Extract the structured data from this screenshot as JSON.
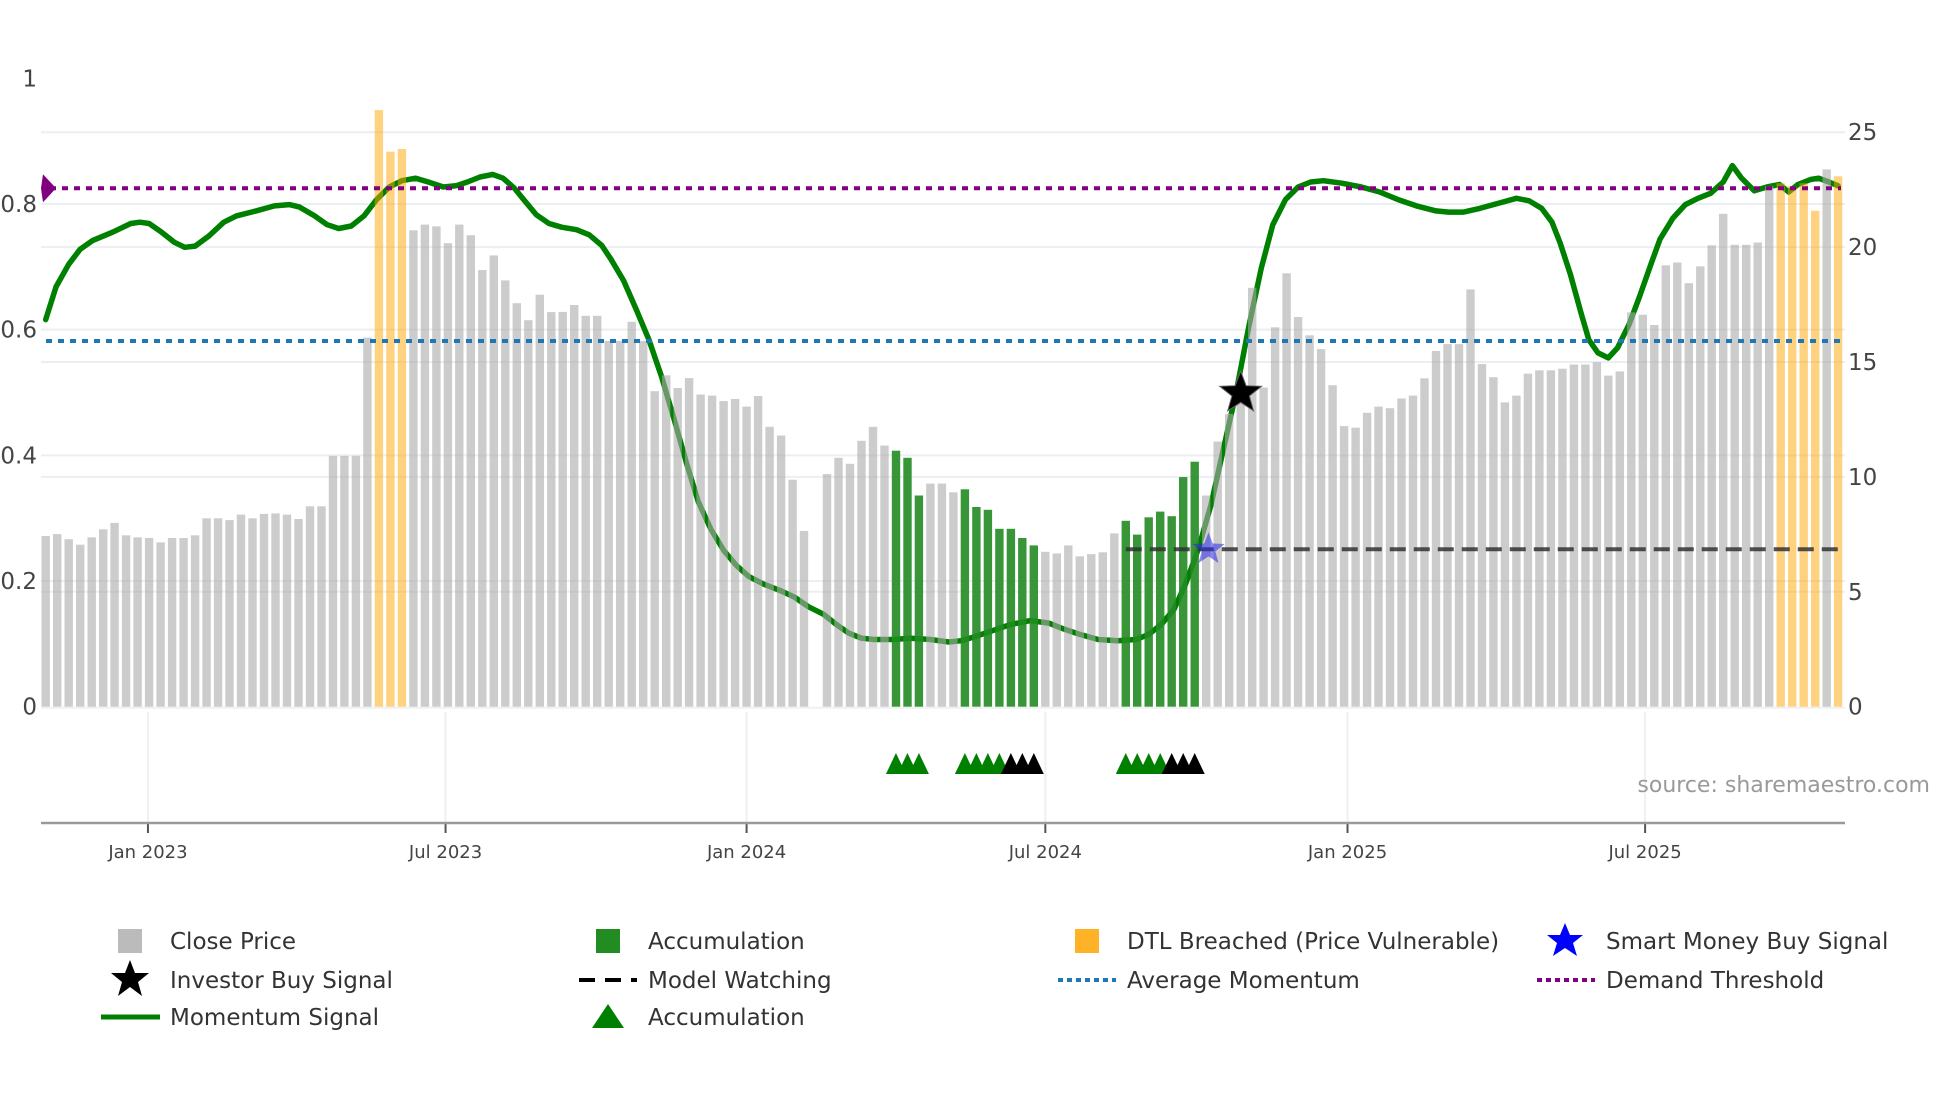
{
  "chart_data": {
    "type": "bar",
    "interval": "weekly",
    "left_axis": {
      "ticks": [
        0,
        0.2,
        0.4,
        0.6,
        0.8,
        1
      ],
      "labels": [
        "0",
        "0.2",
        "0.4",
        "0.6",
        "0.8",
        "1"
      ],
      "range": [
        0,
        1
      ]
    },
    "right_axis": {
      "ticks": [
        0,
        5,
        10,
        15,
        20,
        25
      ],
      "labels": [
        "0",
        "5",
        "10",
        "15",
        "20",
        "25"
      ],
      "range": [
        0,
        25
      ]
    },
    "x_ticks": [
      {
        "week": 8.9,
        "label": "Jan 2023"
      },
      {
        "week": 34.8,
        "label": "Jul 2023"
      },
      {
        "week": 61.0,
        "label": "Jan 2024"
      },
      {
        "week": 87.0,
        "label": "Jul 2024"
      },
      {
        "week": 113.3,
        "label": "Jan 2025"
      },
      {
        "week": 139.2,
        "label": "Jul 2025"
      }
    ],
    "bar_type_key": {
      "c": "Close Price",
      "a": "Accumulation",
      "d": "DTL Breached (Price Vulnerable)"
    },
    "close_price": [
      7.43,
      7.51,
      7.29,
      7.05,
      7.37,
      7.72,
      8.0,
      7.46,
      7.37,
      7.34,
      7.15,
      7.34,
      7.34,
      7.46,
      8.2,
      8.2,
      8.12,
      8.36,
      8.2,
      8.39,
      8.41,
      8.36,
      8.17,
      8.72,
      8.72,
      10.92,
      10.92,
      10.92,
      16.06,
      25.96,
      24.15,
      24.27,
      20.73,
      20.98,
      20.9,
      20.17,
      20.98,
      20.52,
      19.0,
      19.64,
      18.55,
      17.56,
      16.82,
      17.93,
      17.17,
      17.18,
      17.48,
      17.01,
      17.01,
      15.92,
      15.92,
      16.75,
      15.92,
      13.73,
      14.42,
      13.87,
      14.3,
      13.58,
      13.54,
      13.3,
      13.39,
      13.06,
      13.52,
      12.18,
      11.8,
      9.88,
      7.65,
      null,
      10.12,
      10.83,
      10.57,
      11.57,
      12.18,
      11.36,
      11.14,
      10.83,
      9.19,
      9.71,
      9.71,
      9.33,
      9.46,
      8.69,
      8.57,
      7.74,
      7.74,
      7.34,
      7.02,
      6.74,
      6.67,
      7.02,
      6.54,
      6.64,
      6.72,
      7.54,
      8.09,
      7.49,
      8.24,
      8.49,
      8.29,
      9.99,
      10.66,
      9.19,
      11.54,
      12.74,
      13.89,
      18.23,
      13.89,
      16.51,
      18.86,
      16.96,
      16.16,
      15.56,
      13.99,
      12.21,
      12.14,
      12.79,
      13.06,
      12.99,
      13.41,
      13.54,
      14.29,
      15.48,
      15.78,
      15.78,
      18.16,
      14.91,
      14.34,
      13.24,
      13.54,
      14.49,
      14.64,
      14.64,
      14.71,
      14.89,
      14.89,
      14.99,
      14.41,
      14.59,
      17.16,
      17.06,
      16.61,
      19.21,
      19.33,
      18.43,
      19.16,
      20.08,
      21.45,
      20.1,
      20.1,
      20.2,
      22.65,
      22.78,
      22.65,
      22.78,
      21.58,
      23.38,
      23.08
    ],
    "bar_types": "cccccccccccccccccccccccccccccdddccccccccccccccccccccccccccccccccccccccccccaaacccaaaaaaacccccccaaaaaaaccccccccccccccccccccccccccccccccccccccccccccccccccddddcdd",
    "momentum_signal": [
      [
        0,
        0.616
      ],
      [
        0.9,
        0.668
      ],
      [
        2,
        0.704
      ],
      [
        3,
        0.728
      ],
      [
        4.1,
        0.742
      ],
      [
        5.8,
        0.755
      ],
      [
        7.4,
        0.769
      ],
      [
        8.2,
        0.771
      ],
      [
        9,
        0.769
      ],
      [
        10.1,
        0.755
      ],
      [
        11.2,
        0.739
      ],
      [
        12.1,
        0.731
      ],
      [
        13,
        0.733
      ],
      [
        14.2,
        0.749
      ],
      [
        15.5,
        0.771
      ],
      [
        16.6,
        0.781
      ],
      [
        18.3,
        0.789
      ],
      [
        19.9,
        0.797
      ],
      [
        21.2,
        0.799
      ],
      [
        22.1,
        0.795
      ],
      [
        23.4,
        0.781
      ],
      [
        24.5,
        0.767
      ],
      [
        25.5,
        0.761
      ],
      [
        26.6,
        0.765
      ],
      [
        27.7,
        0.781
      ],
      [
        28.8,
        0.807
      ],
      [
        29.9,
        0.827
      ],
      [
        31,
        0.837
      ],
      [
        32.2,
        0.841
      ],
      [
        33.3,
        0.835
      ],
      [
        34.6,
        0.827
      ],
      [
        35.7,
        0.829
      ],
      [
        36.7,
        0.835
      ],
      [
        37.8,
        0.843
      ],
      [
        38.9,
        0.847
      ],
      [
        39.8,
        0.841
      ],
      [
        40.8,
        0.825
      ],
      [
        41.6,
        0.807
      ],
      [
        42.7,
        0.783
      ],
      [
        43.8,
        0.769
      ],
      [
        44.9,
        0.763
      ],
      [
        46.2,
        0.759
      ],
      [
        47.3,
        0.751
      ],
      [
        48.4,
        0.734
      ],
      [
        49.2,
        0.712
      ],
      [
        50.3,
        0.678
      ],
      [
        51.4,
        0.632
      ],
      [
        52.5,
        0.584
      ],
      [
        53.6,
        0.525
      ],
      [
        54.7,
        0.457
      ],
      [
        55.8,
        0.386
      ],
      [
        56.8,
        0.326
      ],
      [
        57.9,
        0.282
      ],
      [
        59,
        0.249
      ],
      [
        60.1,
        0.225
      ],
      [
        61.2,
        0.207
      ],
      [
        62.5,
        0.195
      ],
      [
        63.9,
        0.185
      ],
      [
        65.1,
        0.175
      ],
      [
        66.4,
        0.159
      ],
      [
        67.7,
        0.147
      ],
      [
        68.8,
        0.131
      ],
      [
        69.9,
        0.117
      ],
      [
        71,
        0.109
      ],
      [
        72.1,
        0.107
      ],
      [
        73.7,
        0.107
      ],
      [
        75.3,
        0.109
      ],
      [
        77,
        0.107
      ],
      [
        78.6,
        0.103
      ],
      [
        79.7,
        0.105
      ],
      [
        80.8,
        0.111
      ],
      [
        82.4,
        0.121
      ],
      [
        84,
        0.131
      ],
      [
        85.7,
        0.137
      ],
      [
        87.3,
        0.133
      ],
      [
        88.4,
        0.125
      ],
      [
        90,
        0.115
      ],
      [
        91.6,
        0.107
      ],
      [
        93.3,
        0.105
      ],
      [
        94.9,
        0.107
      ],
      [
        96,
        0.115
      ],
      [
        97.1,
        0.131
      ],
      [
        98.2,
        0.155
      ],
      [
        99.2,
        0.195
      ],
      [
        100.3,
        0.25
      ],
      [
        101.4,
        0.32
      ],
      [
        102.5,
        0.41
      ],
      [
        103.6,
        0.5
      ],
      [
        104.7,
        0.604
      ],
      [
        105.8,
        0.698
      ],
      [
        106.8,
        0.767
      ],
      [
        107.9,
        0.807
      ],
      [
        109,
        0.827
      ],
      [
        110.1,
        0.835
      ],
      [
        111.2,
        0.837
      ],
      [
        112.8,
        0.833
      ],
      [
        114.5,
        0.827
      ],
      [
        116.1,
        0.819
      ],
      [
        117.7,
        0.807
      ],
      [
        119.3,
        0.797
      ],
      [
        121,
        0.789
      ],
      [
        122.1,
        0.787
      ],
      [
        123.4,
        0.787
      ],
      [
        124.8,
        0.793
      ],
      [
        126.4,
        0.801
      ],
      [
        128,
        0.809
      ],
      [
        129.1,
        0.805
      ],
      [
        130.2,
        0.793
      ],
      [
        131.1,
        0.771
      ],
      [
        131.8,
        0.738
      ],
      [
        132.7,
        0.688
      ],
      [
        133.6,
        0.628
      ],
      [
        134.3,
        0.584
      ],
      [
        135.1,
        0.563
      ],
      [
        136,
        0.555
      ],
      [
        136.8,
        0.571
      ],
      [
        137.8,
        0.608
      ],
      [
        138.7,
        0.652
      ],
      [
        139.7,
        0.704
      ],
      [
        140.5,
        0.744
      ],
      [
        141.6,
        0.777
      ],
      [
        142.7,
        0.799
      ],
      [
        143.8,
        0.809
      ],
      [
        144.9,
        0.817
      ],
      [
        146,
        0.835
      ],
      [
        146.8,
        0.861
      ],
      [
        147.6,
        0.841
      ],
      [
        148.7,
        0.821
      ],
      [
        149.8,
        0.827
      ],
      [
        150.9,
        0.831
      ],
      [
        151.7,
        0.819
      ],
      [
        152.5,
        0.831
      ],
      [
        153.6,
        0.839
      ],
      [
        154.3,
        0.841
      ],
      [
        155.2,
        0.835
      ],
      [
        156,
        0.829
      ]
    ],
    "demand_threshold": 0.825,
    "average_momentum": 0.582,
    "model_watching": {
      "price": 6.85,
      "from_week": 94,
      "to_week": 156.5
    },
    "investor_buy_signal": {
      "week": 104,
      "momentum": 0.499
    },
    "smart_money_buy_signal": {
      "week": 101.2,
      "price": 6.85
    },
    "accumulation_markers": [
      {
        "week": 74,
        "color": "green"
      },
      {
        "week": 75,
        "color": "green"
      },
      {
        "week": 76,
        "color": "green"
      },
      {
        "week": 80,
        "color": "green"
      },
      {
        "week": 81,
        "color": "green"
      },
      {
        "week": 82,
        "color": "green"
      },
      {
        "week": 83,
        "color": "green"
      },
      {
        "week": 84,
        "color": "black"
      },
      {
        "week": 85,
        "color": "black"
      },
      {
        "week": 86,
        "color": "black"
      },
      {
        "week": 94,
        "color": "green"
      },
      {
        "week": 95,
        "color": "green"
      },
      {
        "week": 96,
        "color": "green"
      },
      {
        "week": 97,
        "color": "green"
      },
      {
        "week": 98,
        "color": "black"
      },
      {
        "week": 99,
        "color": "black"
      },
      {
        "week": 100,
        "color": "black"
      }
    ],
    "legend_placement": "bottom",
    "colors": {
      "close": "rgba(170,170,170,0.6)",
      "accumulation": "rgba(34,139,34,0.9)",
      "dtl": "rgba(255,165,0,0.5)",
      "momentum": "#008000",
      "threshold": "#800080",
      "average": "#1f77b4",
      "watching": "#333333",
      "investor_star": "#000000",
      "smart_star": "rgba(40,40,230,0.55)"
    }
  },
  "source_note": "source: sharemaestro.com",
  "legend": [
    {
      "label": "Close Price",
      "icon": "gray-square-icon"
    },
    {
      "label": "Accumulation",
      "icon": "green-square-icon"
    },
    {
      "label": "DTL Breached (Price Vulnerable)",
      "icon": "orange-square-icon"
    },
    {
      "label": "Smart Money Buy Signal",
      "icon": "blue-star-icon"
    },
    {
      "label": "Investor Buy Signal",
      "icon": "black-star-icon"
    },
    {
      "label": "Model Watching",
      "icon": "dashed-line-icon"
    },
    {
      "label": "Average Momentum",
      "icon": "blue-dotted-line-icon"
    },
    {
      "label": "Demand Threshold",
      "icon": "purple-dotted-line-icon"
    },
    {
      "label": "Momentum Signal",
      "icon": "green-line-icon"
    },
    {
      "label": "Accumulation",
      "icon": "green-triangle-icon"
    }
  ]
}
